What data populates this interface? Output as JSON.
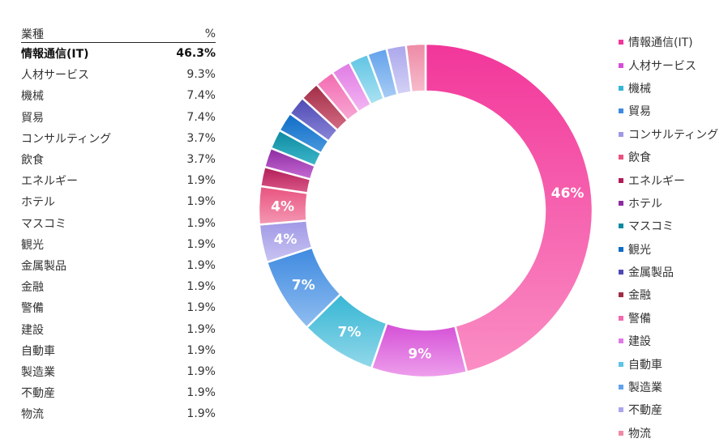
{
  "table": {
    "header": {
      "category": "業種",
      "percent": "%"
    },
    "rows": [
      {
        "label": "情報通信(IT)",
        "value": "46.3%"
      },
      {
        "label": "人材サービス",
        "value": "9.3%"
      },
      {
        "label": "機械",
        "value": "7.4%"
      },
      {
        "label": "貿易",
        "value": "7.4%"
      },
      {
        "label": "コンサルティング",
        "value": "3.7%"
      },
      {
        "label": "飲食",
        "value": "3.7%"
      },
      {
        "label": "エネルギー",
        "value": "1.9%"
      },
      {
        "label": "ホテル",
        "value": "1.9%"
      },
      {
        "label": "マスコミ",
        "value": "1.9%"
      },
      {
        "label": "観光",
        "value": "1.9%"
      },
      {
        "label": "金属製品",
        "value": "1.9%"
      },
      {
        "label": "金融",
        "value": "1.9%"
      },
      {
        "label": "警備",
        "value": "1.9%"
      },
      {
        "label": "建設",
        "value": "1.9%"
      },
      {
        "label": "自動車",
        "value": "1.9%"
      },
      {
        "label": "製造業",
        "value": "1.9%"
      },
      {
        "label": "不動産",
        "value": "1.9%"
      },
      {
        "label": "物流",
        "value": "1.9%"
      }
    ]
  },
  "chart_data": {
    "type": "pie",
    "donut": true,
    "legend_position": "right",
    "categories": [
      "情報通信(IT)",
      "人材サービス",
      "機械",
      "貿易",
      "コンサルティング",
      "飲食",
      "エネルギー",
      "ホテル",
      "マスコミ",
      "観光",
      "金属製品",
      "金融",
      "警備",
      "建設",
      "自動車",
      "製造業",
      "不動産",
      "物流"
    ],
    "values": [
      46.3,
      9.3,
      7.4,
      7.4,
      3.7,
      3.7,
      1.9,
      1.9,
      1.9,
      1.9,
      1.9,
      1.9,
      1.9,
      1.9,
      1.9,
      1.9,
      1.9,
      1.9
    ],
    "data_labels": [
      "46%",
      "9%",
      "7%",
      "7%",
      "4%",
      "4%",
      "",
      "",
      "",
      "",
      "",
      "",
      "",
      "",
      "",
      "",
      "",
      ""
    ],
    "colors": [
      [
        "#f2369a",
        "#fa8ec4"
      ],
      [
        "#d44fd6",
        "#ee9fec"
      ],
      [
        "#35b6d4",
        "#93d8ea"
      ],
      [
        "#3e8ae0",
        "#90bdf0"
      ],
      [
        "#9f98e6",
        "#c9c4f2"
      ],
      [
        "#e8527e",
        "#f498b4"
      ],
      [
        "#b01c56",
        "#dc5a8a"
      ],
      [
        "#8c2ca0",
        "#c66ad4"
      ],
      [
        "#0b8aa0",
        "#3fb6ca"
      ],
      [
        "#0e6cc6",
        "#4a98de"
      ],
      [
        "#4e4ab4",
        "#8a86d8"
      ],
      [
        "#a02c44",
        "#d46c84"
      ],
      [
        "#f26ab0",
        "#f8a8d4"
      ],
      [
        "#e07ae4",
        "#f2b6f2"
      ],
      [
        "#5ec4e4",
        "#ace2f2"
      ],
      [
        "#62a2ec",
        "#a8ccf4"
      ],
      [
        "#aaa6ec",
        "#d4d2f6"
      ],
      [
        "#ee8aa6",
        "#f6bccc"
      ]
    ]
  }
}
